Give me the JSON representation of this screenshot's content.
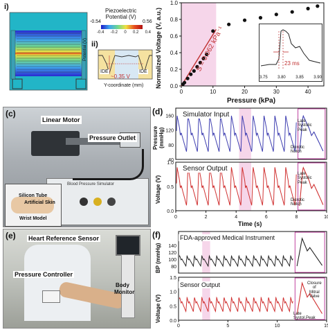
{
  "panels": {
    "a_i": {
      "marker": "i)",
      "colorbar_title": "Piezoelectric\nPotential (V)",
      "colorbar_min": "-0.54",
      "colorbar_max": "0.56",
      "colorbar_ticks": [
        "-0.4",
        "-0.2",
        "0",
        "0.2",
        "0.4"
      ]
    },
    "a_ii": {
      "marker": "ii)",
      "ylabel": "Potential (V)",
      "xlabel": "Y-coordinate (mm)",
      "ide_left": "IDE",
      "ide_right": "IDE",
      "annotation": "~0.35 V"
    },
    "b": {
      "ylabel": "Normalized Voltage (V, a.u.)",
      "xlabel": "Pressure (kPa)",
      "sensitivity": "S = 0.062 kPa⁻¹",
      "inset_annotation": "23 ms",
      "inset_ticks": [
        "3.75",
        "3.80",
        "3.85",
        "3.90"
      ]
    },
    "c": {
      "letter": "(c)",
      "labels": [
        "Linear Motor",
        "Pressure Outlet",
        "Silicon Tube",
        "Artificial Skin",
        "Wrist Model"
      ],
      "device_text": "Blood Pressure Simulator"
    },
    "d": {
      "letter": "(d)",
      "top_label": "Simulator Input",
      "top_ylabel": "Pressure\n(mmHg)",
      "bottom_label": "Sensor Output",
      "bottom_ylabel": "Voltage (V)",
      "xlabel": "Time (s)",
      "inset_top": [
        "Late",
        "Systolic",
        "Peak",
        "Dicrotic",
        "Notch"
      ],
      "inset_bottom": [
        "Late",
        "Systolic",
        "Peak",
        "Dicrotic",
        "Notch"
      ]
    },
    "e": {
      "letter": "(e)",
      "labels": [
        "Heart Reference Sensor",
        "Pressure Controller",
        "Body",
        "Monitor"
      ]
    },
    "f": {
      "letter": "(f)",
      "top_label": "FDA-approved Medical Instrument",
      "top_ylabel": "BP (mmHg)",
      "bottom_label": "Sensor Output",
      "bottom_ylabel": "Voltage (V)",
      "inset_bottom": [
        "Closure",
        "of",
        "Mitral",
        "Valve",
        "Late",
        "Systol.Peak"
      ]
    }
  },
  "chart_data": [
    {
      "type": "scatter",
      "xlabel": "Pressure (kPa)",
      "ylabel": "Normalized Voltage (V, a.u.)",
      "xlim": [
        0,
        45
      ],
      "ylim": [
        0,
        1.0
      ],
      "x_ticks": [
        0,
        10,
        20,
        30,
        40
      ],
      "y_ticks": [
        0.0,
        0.2,
        0.4,
        0.6,
        0.8,
        1.0
      ],
      "x": [
        0.5,
        1,
        2,
        3,
        4,
        5,
        6,
        7,
        8,
        10,
        15,
        20,
        25,
        30,
        35,
        40,
        43
      ],
      "y": [
        0.02,
        0.04,
        0.09,
        0.14,
        0.18,
        0.23,
        0.28,
        0.33,
        0.38,
        0.66,
        0.74,
        0.79,
        0.82,
        0.86,
        0.89,
        0.93,
        0.96
      ],
      "fit_line": {
        "x": [
          0,
          11
        ],
        "y": [
          0,
          0.68
        ]
      }
    },
    {
      "type": "line",
      "name": "Simulator Input",
      "xlabel": "Time (s)",
      "ylim": [
        40,
        180
      ],
      "y_ticks": [
        40,
        80,
        120,
        160
      ]
    },
    {
      "type": "line",
      "name": "Sensor Output",
      "xlabel": "Time (s)",
      "xlim": [
        0,
        10
      ],
      "x_ticks": [
        0,
        2,
        4,
        6,
        8,
        10
      ],
      "ylim": [
        0.0,
        1.0
      ],
      "y_ticks": [
        0.0,
        0.5,
        1.0
      ]
    },
    {
      "type": "line",
      "name": "FDA-approved Medical Instrument",
      "ylim": [
        60,
        180
      ],
      "y_ticks": [
        80,
        100,
        120,
        140
      ]
    },
    {
      "type": "line",
      "name": "Sensor Output",
      "ylim": [
        0.0,
        1.5
      ],
      "x_ticks": [
        0,
        5,
        10,
        15
      ],
      "y_ticks": [
        0.0,
        0.5,
        1.0,
        1.5
      ]
    }
  ]
}
